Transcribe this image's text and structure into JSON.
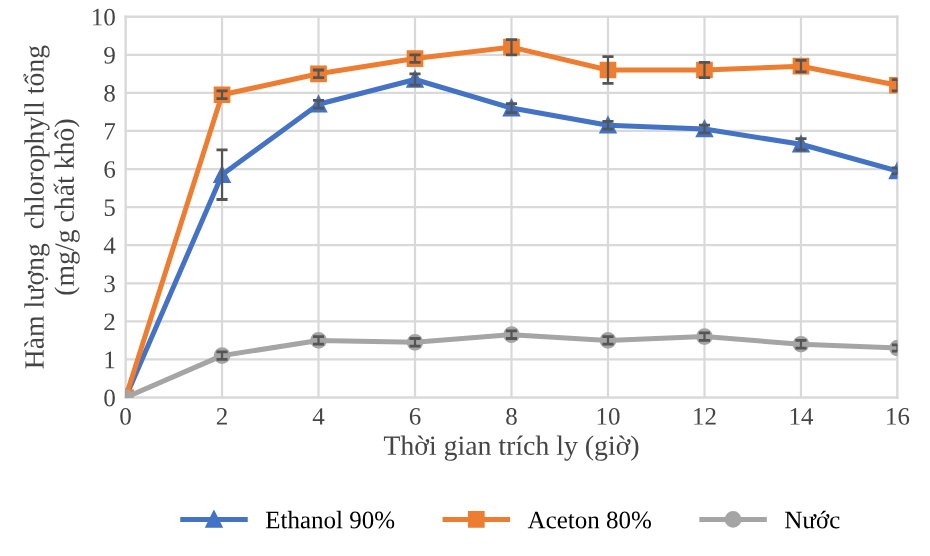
{
  "chart_data": {
    "type": "line",
    "xlabel": "Thời gian trích ly (giờ)",
    "ylabel": "Hàm lượng  chlorophyll tổng\n(mg/g chất khô)",
    "x": [
      0,
      2,
      4,
      6,
      8,
      10,
      12,
      14,
      16
    ],
    "series": [
      {
        "name": "Ethanol 90%",
        "color": "#4472c4",
        "marker": "triangle",
        "values": [
          0,
          5.85,
          7.7,
          8.35,
          7.6,
          7.15,
          7.05,
          6.65,
          5.95
        ],
        "errors": [
          null,
          0.65,
          0.1,
          0.15,
          0.12,
          0.1,
          0.1,
          0.15,
          0.08
        ]
      },
      {
        "name": "Aceton 80%",
        "color": "#ed7d31",
        "marker": "square",
        "values": [
          0,
          7.95,
          8.5,
          8.9,
          9.2,
          8.6,
          8.6,
          8.7,
          8.2
        ],
        "errors": [
          null,
          0.1,
          0.1,
          0.1,
          0.2,
          0.35,
          0.2,
          0.15,
          0.15
        ]
      },
      {
        "name": "Nước",
        "color": "#a5a5a5",
        "marker": "circle",
        "values": [
          0,
          1.1,
          1.5,
          1.45,
          1.65,
          1.5,
          1.6,
          1.4,
          1.3
        ],
        "errors": [
          null,
          0.1,
          0.1,
          0.1,
          0.1,
          0.1,
          0.1,
          0.1,
          0.08
        ]
      }
    ],
    "xlim": [
      0,
      16
    ],
    "xticks": [
      0,
      2,
      4,
      6,
      8,
      10,
      12,
      14,
      16
    ],
    "ylim": [
      0,
      10
    ],
    "yticks": [
      0,
      1,
      2,
      3,
      4,
      5,
      6,
      7,
      8,
      9,
      10
    ],
    "grid": true,
    "legend": "bottom",
    "line_style": "solid"
  }
}
